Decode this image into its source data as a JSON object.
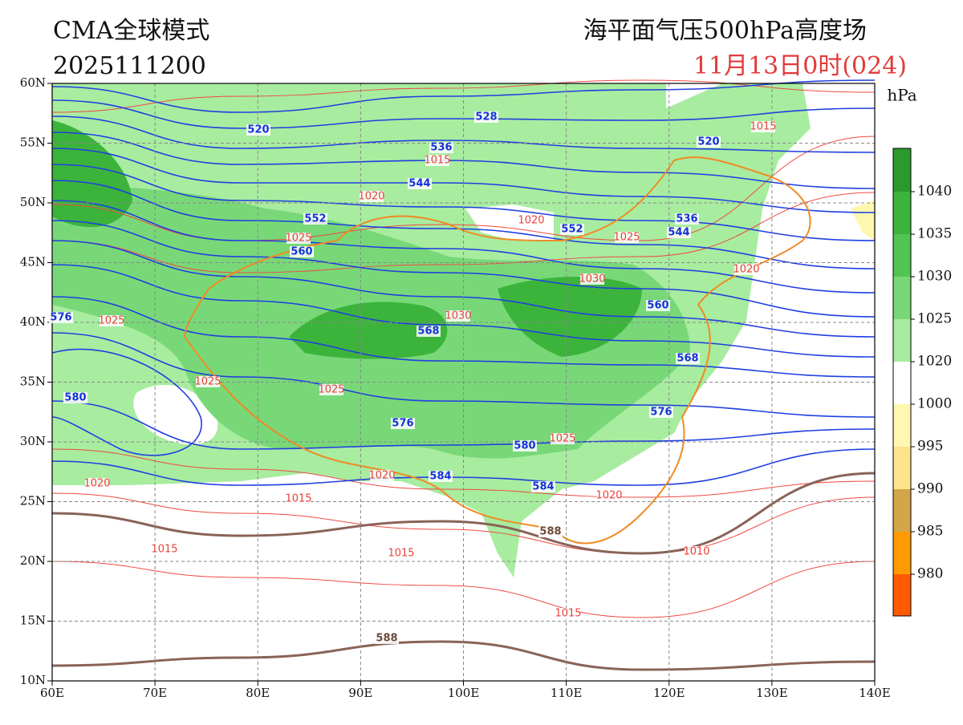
{
  "header": {
    "model": "CMA全球模式",
    "run": "2025111200",
    "product": "海平面气压500hPa高度场",
    "valid": "11月13日0时(024)"
  },
  "axes": {
    "lat_labels": [
      "60N",
      "55N",
      "50N",
      "45N",
      "40N",
      "35N",
      "30N",
      "25N",
      "20N",
      "15N",
      "10N"
    ],
    "lon_labels": [
      "60E",
      "70E",
      "80E",
      "90E",
      "100E",
      "110E",
      "120E",
      "130E",
      "140E"
    ]
  },
  "colorbar": {
    "unit": "hPa",
    "labels": [
      "1040",
      "1035",
      "1030",
      "1025",
      "1020",
      "1000",
      "995",
      "990",
      "985",
      "980"
    ]
  },
  "height_labels": [
    "520",
    "528",
    "536",
    "544",
    "552",
    "552",
    "560",
    "568",
    "576",
    "580",
    "584",
    "580",
    "584",
    "576",
    "568",
    "560",
    "544",
    "536",
    "520",
    "576"
  ],
  "pressure_labels": [
    "1015",
    "1020",
    "1020",
    "1025",
    "1025",
    "1030",
    "1030",
    "1025",
    "1025",
    "1025",
    "1025",
    "1020",
    "1020",
    "1015",
    "1020",
    "1015",
    "1015",
    "1010",
    "1015",
    "1015",
    "1020"
  ],
  "ridge_labels": [
    "588",
    "588"
  ]
}
